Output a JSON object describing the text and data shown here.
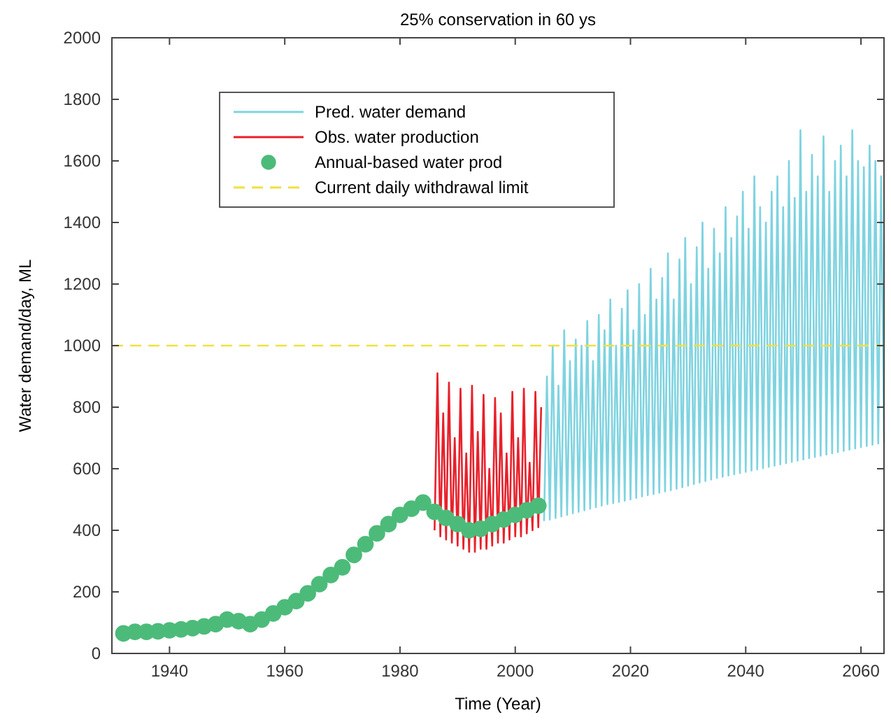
{
  "chart_data": {
    "type": "line",
    "title": "25% conservation in 60 ys",
    "xlabel": "Time (Year)",
    "ylabel": "Water demand/day, ML",
    "xlim": [
      1930,
      2064
    ],
    "xticks": [
      1940,
      1960,
      1980,
      2000,
      2020,
      2040,
      2060
    ],
    "ylim": [
      0,
      2000
    ],
    "yticks": [
      0,
      200,
      400,
      600,
      800,
      1000,
      1200,
      1400,
      1600,
      1800,
      2000
    ],
    "grid": false,
    "legend": "top left",
    "series": [
      {
        "name": "Pred. water demand",
        "type": "line",
        "color": "#7fd3e0",
        "x": [
          2005,
          2005.5,
          2006,
          2006.5,
          2007,
          2007.5,
          2008,
          2008.5,
          2009,
          2009.5,
          2010,
          2010.5,
          2011,
          2011.5,
          2012,
          2012.5,
          2013,
          2013.5,
          2014,
          2014.5,
          2015,
          2015.5,
          2016,
          2016.5,
          2017,
          2017.5,
          2018,
          2018.5,
          2019,
          2019.5,
          2020,
          2020.5,
          2021,
          2021.5,
          2022,
          2022.5,
          2023,
          2023.5,
          2024,
          2024.5,
          2025,
          2025.5,
          2026,
          2026.5,
          2027,
          2027.5,
          2028,
          2028.5,
          2029,
          2029.5,
          2030,
          2030.5,
          2031,
          2031.5,
          2032,
          2032.5,
          2033,
          2033.5,
          2034,
          2034.5,
          2035,
          2035.5,
          2036,
          2036.5,
          2037,
          2037.5,
          2038,
          2038.5,
          2039,
          2039.5,
          2040,
          2040.5,
          2041,
          2041.5,
          2042,
          2042.5,
          2043,
          2043.5,
          2044,
          2044.5,
          2045,
          2045.5,
          2046,
          2046.5,
          2047,
          2047.5,
          2048,
          2048.5,
          2049,
          2049.5,
          2050,
          2050.5,
          2051,
          2051.5,
          2052,
          2052.5,
          2053,
          2053.5,
          2054,
          2054.5,
          2055,
          2055.5,
          2056,
          2056.5,
          2057,
          2057.5,
          2058,
          2058.5,
          2059,
          2059.5,
          2060,
          2060.5,
          2061,
          2061.5,
          2062,
          2062.5,
          2063,
          2063.5,
          2064
        ],
        "values": [
          430,
          900,
          435,
          1000,
          440,
          870,
          445,
          1050,
          450,
          950,
          455,
          1020,
          460,
          1000,
          465,
          1080,
          470,
          950,
          475,
          1100,
          480,
          1050,
          485,
          1150,
          488,
          1000,
          492,
          1120,
          496,
          1180,
          500,
          1050,
          505,
          1200,
          510,
          1100,
          514,
          1250,
          518,
          1150,
          522,
          1220,
          526,
          1300,
          530,
          1150,
          535,
          1280,
          540,
          1350,
          545,
          1200,
          550,
          1320,
          555,
          1400,
          560,
          1250,
          565,
          1380,
          570,
          1300,
          574,
          1450,
          578,
          1350,
          582,
          1420,
          586,
          1500,
          590,
          1380,
          594,
          1550,
          598,
          1450,
          602,
          1400,
          606,
          1500,
          610,
          1550,
          614,
          1450,
          618,
          1600,
          622,
          1480,
          626,
          1700,
          630,
          1500,
          634,
          1620,
          638,
          1550,
          642,
          1680,
          646,
          1500,
          650,
          1600,
          654,
          1650,
          658,
          1550,
          662,
          1700,
          666,
          1600,
          670,
          1580,
          674,
          1650,
          678,
          1600,
          682,
          1550,
          686
        ]
      },
      {
        "name": "Obs. water production",
        "type": "line",
        "color": "#e8202a",
        "x": [
          1986,
          1986.5,
          1987,
          1987.5,
          1988,
          1988.5,
          1989,
          1989.5,
          1990,
          1990.5,
          1991,
          1991.5,
          1992,
          1992.5,
          1993,
          1993.5,
          1994,
          1994.5,
          1995,
          1995.5,
          1996,
          1996.5,
          1997,
          1997.5,
          1998,
          1998.5,
          1999,
          1999.5,
          2000,
          2000.5,
          2001,
          2001.5,
          2002,
          2002.5,
          2003,
          2003.5,
          2004,
          2004.5
        ],
        "values": [
          400,
          910,
          380,
          780,
          370,
          880,
          360,
          700,
          350,
          860,
          340,
          650,
          330,
          870,
          330,
          720,
          340,
          840,
          340,
          600,
          350,
          830,
          360,
          780,
          360,
          650,
          370,
          850,
          380,
          700,
          380,
          860,
          390,
          620,
          400,
          850,
          410,
          800
        ]
      },
      {
        "name": "Annual-based water prod",
        "type": "scatter",
        "marker": "circle",
        "color": "#4cbb7a",
        "x": [
          1932,
          1934,
          1936,
          1938,
          1940,
          1942,
          1944,
          1946,
          1948,
          1950,
          1952,
          1954,
          1956,
          1958,
          1960,
          1962,
          1964,
          1966,
          1968,
          1970,
          1972,
          1974,
          1976,
          1978,
          1980,
          1982,
          1984,
          1986,
          1988,
          1990,
          1992,
          1994,
          1996,
          1998,
          2000,
          2002,
          2004
        ],
        "values": [
          65,
          70,
          70,
          72,
          75,
          78,
          82,
          88,
          95,
          110,
          105,
          95,
          110,
          130,
          150,
          170,
          195,
          225,
          255,
          280,
          320,
          355,
          390,
          420,
          450,
          470,
          490,
          460,
          440,
          420,
          400,
          405,
          420,
          435,
          450,
          465,
          480
        ]
      },
      {
        "name": "Current daily withdrawal limit",
        "type": "line",
        "line_style": "dashed",
        "color": "#f0e040",
        "x": [
          1930,
          2064
        ],
        "values": [
          1000,
          1000
        ]
      }
    ]
  }
}
